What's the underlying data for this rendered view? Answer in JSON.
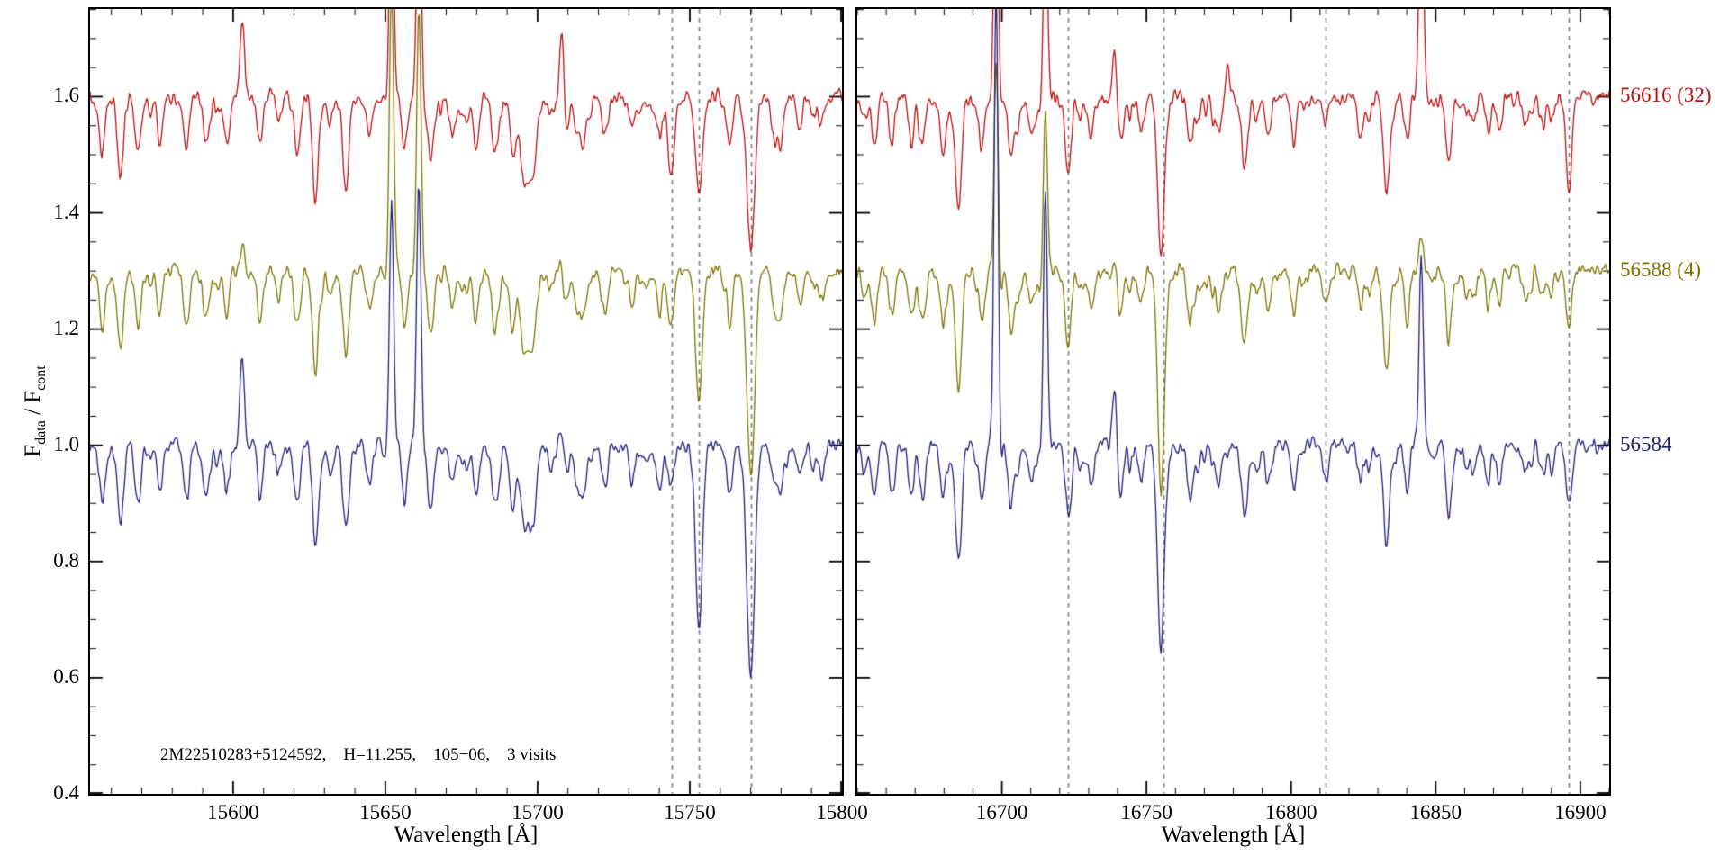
{
  "figure": {
    "ylabel": {
      "base1": "F",
      "sub1": "data",
      "base2": " / F",
      "sub2": "cont"
    },
    "annotation": "2M22510283+5124592,    H=11.255,    105−06,    3 visits"
  },
  "chart_data": {
    "type": "line",
    "title": "",
    "ylabel": "F_data / F_cont",
    "ylim": [
      0.4,
      1.751
    ],
    "yticks": [
      0.4,
      0.6,
      0.8,
      1.0,
      1.2,
      1.4,
      1.6
    ],
    "y_minor_step": 0.05,
    "x_minor_step": 10,
    "grid": false,
    "legend_position": "right-outside",
    "ref_line_color": "#7f7f7f",
    "frame_color": "#000000",
    "series": [
      {
        "label": "56616 (32)",
        "color": "#bb0f0f",
        "offset": 1.6,
        "noise": 0.012
      },
      {
        "label": "56588 (4)",
        "color": "#7d7400",
        "offset": 1.3,
        "noise": 0.011
      },
      {
        "label": "56584",
        "color": "#20207a",
        "offset": 1.0,
        "noise": 0.011
      }
    ],
    "panels": [
      {
        "xlabel": "Wavelength [Å]",
        "xlim": [
          15553,
          15800
        ],
        "xticks": [
          15600,
          15650,
          15700,
          15750,
          15800
        ],
        "dashed_lines": [
          15744,
          15753,
          15770
        ],
        "weak_lines": {
          "seed": 11,
          "per_angstrom": 0.22,
          "depth_min": 0.008,
          "depth_max": 0.045,
          "width_min": 0.5,
          "width_max": 1.1
        },
        "stellar_lines": [
          [
            15557,
            0.1,
            0.9
          ],
          [
            15563,
            0.14,
            1.0
          ],
          [
            15569,
            0.07,
            0.9
          ],
          [
            15576,
            0.05,
            0.9
          ],
          [
            15585,
            0.06,
            0.9
          ],
          [
            15591,
            0.08,
            1.0
          ],
          [
            15598,
            0.04,
            0.8
          ],
          [
            15609,
            0.05,
            0.9
          ],
          [
            15615,
            0.04,
            0.8
          ],
          [
            15621,
            0.1,
            1.0
          ],
          [
            15627,
            0.15,
            1.0
          ],
          [
            15632,
            0.05,
            0.8
          ],
          [
            15637,
            0.15,
            1.0
          ],
          [
            15645,
            0.05,
            0.9
          ],
          [
            15665,
            0.09,
            1.0
          ],
          [
            15672,
            0.06,
            0.9
          ],
          [
            15680,
            0.06,
            0.9
          ],
          [
            15686,
            0.1,
            1.0
          ],
          [
            15692,
            0.07,
            1.0
          ],
          [
            15697,
            0.13,
            2.0
          ],
          [
            15715,
            0.05,
            0.9
          ],
          [
            15722,
            0.07,
            1.0
          ],
          [
            15731,
            0.06,
            0.9
          ],
          [
            15740,
            0.07,
            0.9
          ],
          [
            15778,
            0.08,
            1.0
          ],
          [
            15786,
            0.06,
            0.9
          ],
          [
            15793,
            0.05,
            0.9
          ]
        ],
        "variable_lines": [
          [
            15744,
            [
              0.12,
              0.08,
              0.06
            ],
            1.0
          ],
          [
            15753,
            [
              0.18,
              0.23,
              0.32
            ],
            1.1
          ],
          [
            15770,
            [
              0.25,
              0.33,
              0.38
            ],
            1.3
          ]
        ],
        "emission_lines": [
          [
            15603,
            [
              0.13,
              0.04,
              0.16
            ],
            0.7
          ],
          [
            15652,
            [
              0.45,
              0.5,
              0.42
            ],
            0.7
          ],
          [
            15661,
            [
              0.42,
              0.46,
              0.45
            ],
            0.7
          ],
          [
            15708,
            [
              0.13,
              0.02,
              0.05
            ],
            0.7
          ]
        ]
      },
      {
        "xlabel": "Wavelength [Å]",
        "xlim": [
          16650,
          16910
        ],
        "xticks": [
          16700,
          16750,
          16800,
          16850,
          16900
        ],
        "dashed_lines": [
          16723,
          16756,
          16812,
          16896
        ],
        "weak_lines": {
          "seed": 23,
          "per_angstrom": 0.22,
          "depth_min": 0.008,
          "depth_max": 0.045,
          "width_min": 0.5,
          "width_max": 1.1
        },
        "stellar_lines": [
          [
            16656,
            0.05,
            0.9
          ],
          [
            16662,
            0.08,
            1.0
          ],
          [
            16669,
            0.05,
            0.9
          ],
          [
            16685,
            0.2,
            1.1
          ],
          [
            16693,
            0.06,
            0.9
          ],
          [
            16703,
            0.06,
            0.9
          ],
          [
            16710,
            0.05,
            0.9
          ],
          [
            16731,
            0.06,
            0.9
          ],
          [
            16741,
            0.08,
            1.0
          ],
          [
            16748,
            0.06,
            0.9
          ],
          [
            16765,
            0.09,
            1.0
          ],
          [
            16775,
            0.07,
            1.0
          ],
          [
            16784,
            0.05,
            0.9
          ],
          [
            16792,
            0.06,
            0.9
          ],
          [
            16801,
            0.05,
            0.9
          ],
          [
            16824,
            0.06,
            0.9
          ],
          [
            16833,
            0.14,
            1.0
          ],
          [
            16840,
            0.06,
            0.9
          ],
          [
            16855,
            0.07,
            1.0
          ],
          [
            16863,
            0.05,
            0.9
          ],
          [
            16872,
            0.06,
            0.9
          ],
          [
            16881,
            0.05,
            0.9
          ],
          [
            16890,
            0.04,
            0.9
          ]
        ],
        "variable_lines": [
          [
            16723,
            [
              0.13,
              0.13,
              0.13
            ],
            1.0
          ],
          [
            16755,
            [
              0.28,
              0.38,
              0.36
            ],
            1.1
          ],
          [
            16812,
            [
              0.05,
              0.05,
              0.06
            ],
            1.0
          ],
          [
            16896,
            [
              0.13,
              0.06,
              0.06
            ],
            1.0
          ]
        ],
        "emission_lines": [
          [
            16698,
            [
              0.5,
              0.35,
              0.78
            ],
            0.7
          ],
          [
            16715,
            [
              0.35,
              0.3,
              0.45
            ],
            0.7
          ],
          [
            16739,
            [
              0.08,
              0.03,
              0.1
            ],
            0.7
          ],
          [
            16778,
            [
              0.08,
              0.02,
              0.02
            ],
            0.7
          ],
          [
            16845,
            [
              0.45,
              0.06,
              0.33
            ],
            0.7
          ]
        ]
      }
    ]
  }
}
